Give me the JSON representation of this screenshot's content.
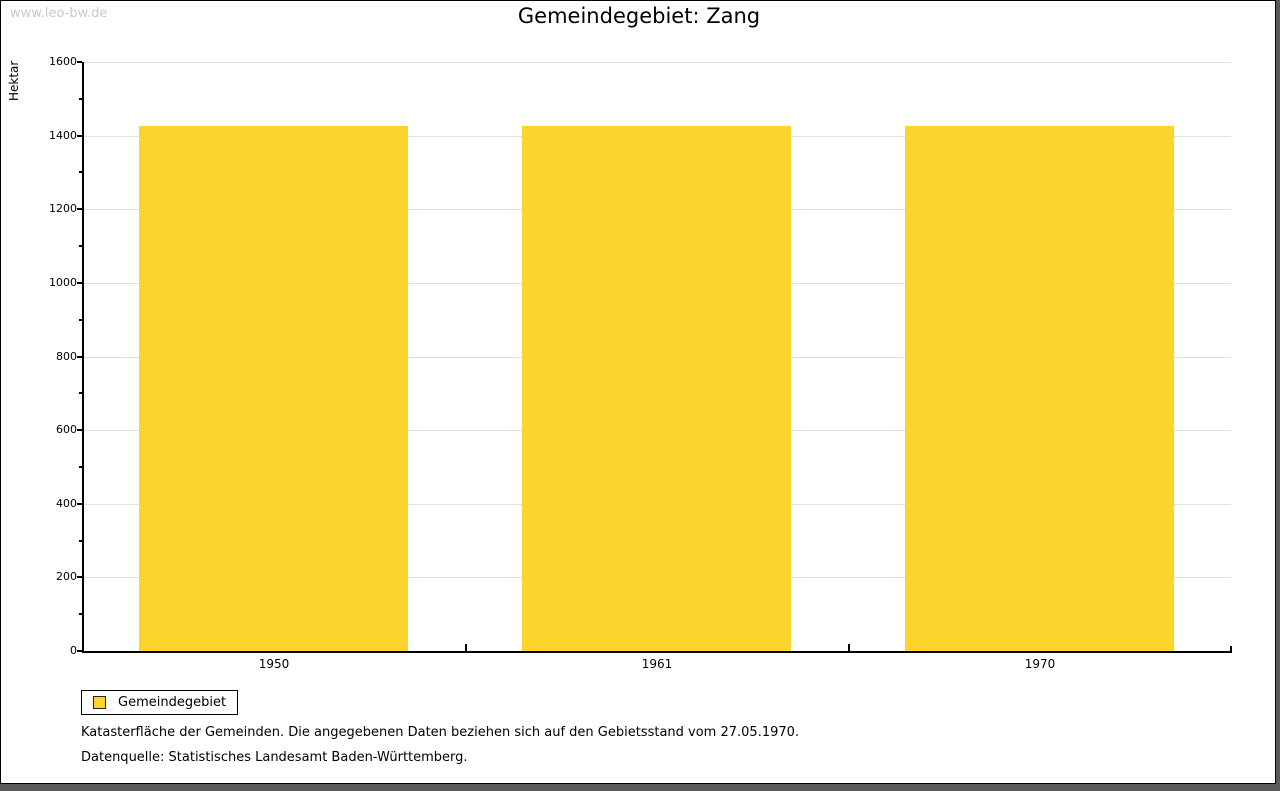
{
  "watermark": "www.leo-bw.de",
  "title": "Gemeindegebiet: Zang",
  "chart_data": {
    "type": "bar",
    "title": "Gemeindegebiet: Zang",
    "categories": [
      "1950",
      "1961",
      "1970"
    ],
    "series": [
      {
        "name": "Gemeindegebiet",
        "values": [
          1425,
          1425,
          1425
        ]
      }
    ],
    "xlabel": "",
    "ylabel": "Hektar",
    "ylim": [
      0,
      1600
    ],
    "ytick_step": 200,
    "yminor_step": 100,
    "grid": true,
    "legend_position": "bottom-left",
    "bar_color": "#FCD42C"
  },
  "legend": {
    "label": "Gemeindegebiet",
    "swatch_color": "#FCD42C"
  },
  "footer": {
    "line1": "Katasterfläche der Gemeinden. Die angegebenen Daten beziehen sich auf den Gebietsstand vom 27.05.1970.",
    "line2": "Datenquelle: Statistisches Landesamt Baden-Württemberg."
  },
  "colors": {
    "bar": "#FCD42C",
    "grid": "#E0E0E0",
    "axis": "#000000",
    "watermark": "#C9C9C9",
    "frame_shadow": "#5A5A5A"
  }
}
